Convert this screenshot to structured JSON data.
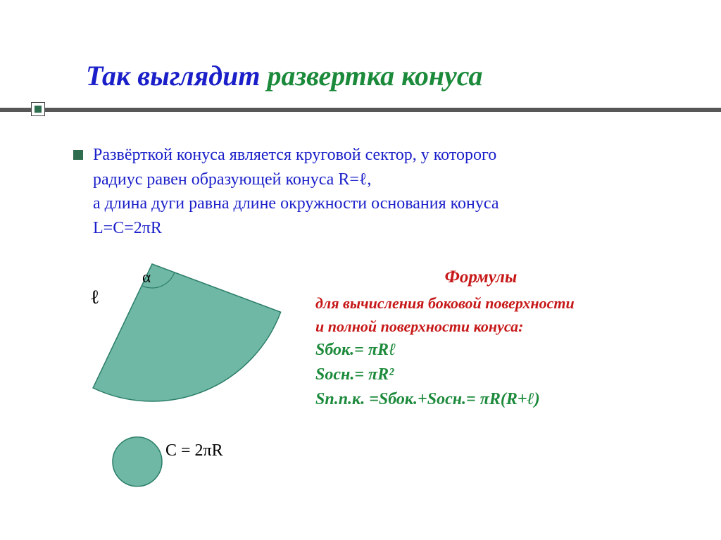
{
  "title": {
    "part1": "Так выглядит ",
    "part2": "развертка конуса"
  },
  "body": {
    "p1": "Развёрткой конуса является круговой сектор, у которого",
    "p2": "радиус равен образующей конуса R=ℓ,",
    "p3": "а длина дуги равна  длине окружности основания конуса",
    "p4": "L=C=2πR"
  },
  "diagram": {
    "alpha": "α",
    "ell": "ℓ",
    "c_eq": "C = 2πR",
    "sector_fill": "#6fb8a6",
    "sector_stroke": "#2b7d68",
    "circle_fill": "#6fb8a6",
    "circle_stroke": "#2b7d68",
    "angle_arc_stroke": "#2b7d68",
    "stroke_width": 1.5,
    "sector_radius": 195,
    "sector_angle_deg": 95,
    "circle_r": 35
  },
  "formulas": {
    "header": "Формулы",
    "sub1": "для вычисления боковой поверхности",
    "sub2": "и полной поверхности конуса:",
    "f1": "Sбок.= πRℓ",
    "f2": "Sосн.= πR²",
    "f3": "Sп.п.к. =Sбок.+Sосн.= πR(R+ℓ)"
  },
  "colors": {
    "title_blue": "#1a1fc9",
    "title_green": "#1c8a3b",
    "formula_red": "#c71818",
    "formula_green": "#1c8a3b",
    "bar_gray": "#575757",
    "bullet_green": "#2f6d4f"
  }
}
